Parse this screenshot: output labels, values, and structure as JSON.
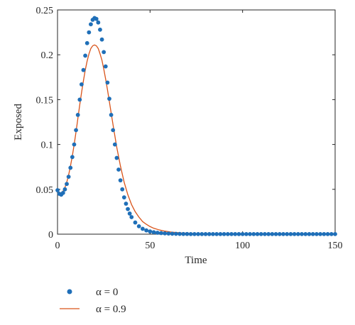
{
  "chart_data": {
    "type": "scatter",
    "title": "",
    "xlabel": "Time",
    "ylabel": "Exposed",
    "xlim": [
      0,
      150
    ],
    "ylim": [
      0,
      0.25
    ],
    "xticks": [
      0,
      50,
      100,
      150
    ],
    "yticks": [
      0,
      0.05,
      0.1,
      0.15,
      0.2,
      0.25
    ],
    "xtick_labels": [
      "0",
      "50",
      "100",
      "150"
    ],
    "ytick_labels": [
      "0",
      "0.05",
      "0.1",
      "0.15",
      "0.2",
      "0.25"
    ],
    "grid": false,
    "legend_position": "below",
    "series": [
      {
        "name": "α = 0",
        "style": "markers",
        "color": "#1f6fb8",
        "x": [
          0,
          1,
          2,
          3,
          4,
          5,
          6,
          7,
          8,
          9,
          10,
          11,
          12,
          13,
          14,
          15,
          16,
          17,
          18,
          19,
          20,
          21,
          22,
          23,
          24,
          25,
          26,
          27,
          28,
          29,
          30,
          31,
          32,
          33,
          34,
          35,
          36,
          37,
          38,
          39,
          40,
          42,
          44,
          46,
          48,
          50,
          52,
          54,
          56,
          58,
          60,
          62,
          64,
          66,
          68,
          70,
          72,
          74,
          76,
          78,
          80,
          82,
          84,
          86,
          88,
          90,
          92,
          94,
          96,
          98,
          100,
          102,
          104,
          106,
          108,
          110,
          112,
          114,
          116,
          118,
          120,
          122,
          124,
          126,
          128,
          130,
          132,
          134,
          136,
          138,
          140,
          142,
          144,
          146,
          148,
          150
        ],
        "y": [
          0.049,
          0.045,
          0.044,
          0.046,
          0.05,
          0.056,
          0.064,
          0.074,
          0.086,
          0.1,
          0.116,
          0.133,
          0.15,
          0.167,
          0.183,
          0.199,
          0.213,
          0.225,
          0.234,
          0.239,
          0.241,
          0.24,
          0.236,
          0.228,
          0.217,
          0.203,
          0.187,
          0.169,
          0.151,
          0.133,
          0.116,
          0.1,
          0.085,
          0.072,
          0.06,
          0.05,
          0.041,
          0.034,
          0.028,
          0.023,
          0.019,
          0.013,
          0.0088,
          0.006,
          0.0042,
          0.003,
          0.0022,
          0.0016,
          0.0012,
          0.0009,
          0.0007,
          0.0005,
          0.0004,
          0.0003,
          0.0002,
          0.0002,
          0.0001,
          0.0001,
          0.0001,
          0.0001,
          0.0001,
          0.0001,
          0.0001,
          0.0001,
          0.0001,
          0.0001,
          0.0001,
          0.0001,
          0.0001,
          0.0001,
          0.0001,
          0.0001,
          0.0001,
          0.0001,
          0.0001,
          0.0001,
          0.0001,
          0.0001,
          0.0001,
          0.0001,
          0.0001,
          0.0001,
          0.0001,
          0.0001,
          0.0001,
          0.0001,
          0.0001,
          0.0001,
          0.0001,
          0.0001,
          0.0001,
          0.0001,
          0.0001,
          0.0001,
          0.0001,
          0.0001
        ]
      },
      {
        "name": "α = 0.9",
        "style": "line",
        "color": "#d95319",
        "x": [
          0,
          1,
          2,
          3,
          4,
          5,
          6,
          7,
          8,
          9,
          10,
          11,
          12,
          13,
          14,
          15,
          16,
          17,
          18,
          19,
          20,
          21,
          22,
          23,
          24,
          25,
          26,
          27,
          28,
          29,
          30,
          32,
          34,
          36,
          38,
          40,
          42,
          44,
          46,
          48,
          50,
          52,
          55,
          58,
          61,
          64,
          67,
          70,
          75,
          80,
          85,
          90,
          100,
          110,
          120,
          130,
          140,
          150
        ],
        "y": [
          0.05,
          0.046,
          0.046,
          0.048,
          0.052,
          0.058,
          0.066,
          0.076,
          0.087,
          0.1,
          0.114,
          0.129,
          0.144,
          0.158,
          0.171,
          0.183,
          0.193,
          0.201,
          0.207,
          0.21,
          0.211,
          0.21,
          0.207,
          0.201,
          0.194,
          0.184,
          0.173,
          0.161,
          0.148,
          0.135,
          0.122,
          0.097,
          0.076,
          0.058,
          0.044,
          0.033,
          0.025,
          0.019,
          0.014,
          0.011,
          0.0085,
          0.0066,
          0.0047,
          0.0034,
          0.0025,
          0.0019,
          0.0014,
          0.0011,
          0.0007,
          0.0005,
          0.0003,
          0.0002,
          0.0001,
          5e-05,
          3e-05,
          2e-05,
          1e-05,
          1e-05
        ]
      }
    ]
  }
}
